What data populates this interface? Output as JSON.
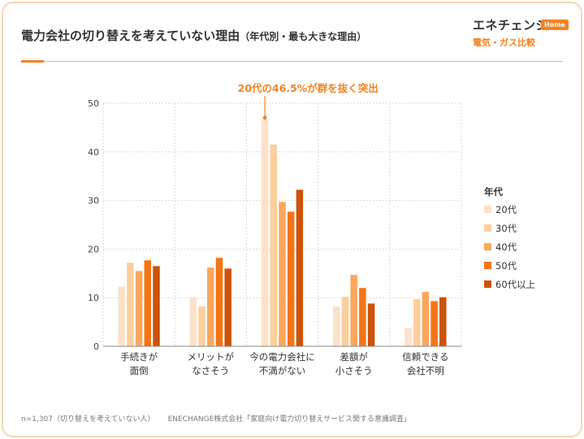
{
  "title": "電力会社の切り替えを考えていない理由",
  "subtitle": "（年代別・最も大きな理由）",
  "brand": {
    "name": "エネチェンジ",
    "badge": "Home",
    "tagline": "電気・ガス比較"
  },
  "footer": {
    "note": "n=1,307（切り替えを考えていない人）",
    "source": "ENECHANGE株式会社「家庭向け電力切り替えサービス関する意識調査」"
  },
  "colors": {
    "accent": "#f5821f",
    "grid": "#d9d9d9",
    "text": "#333333",
    "frame": "#f6d7b3"
  },
  "chart_data": {
    "type": "bar",
    "categories": [
      [
        "手続きが",
        "面倒"
      ],
      [
        "メリットが",
        "なさそう"
      ],
      [
        "今の電力会社に",
        "不満がない"
      ],
      [
        "差額が",
        "小さそう"
      ],
      [
        "信頼できる",
        "会社不明"
      ]
    ],
    "series": [
      {
        "name": "20代",
        "color": "#fde1c8",
        "values": [
          12.3,
          10.0,
          46.5,
          8.2,
          3.8
        ]
      },
      {
        "name": "30代",
        "color": "#fdcf9c",
        "values": [
          17.2,
          8.2,
          41.5,
          10.2,
          9.7
        ]
      },
      {
        "name": "40代",
        "color": "#fba75c",
        "values": [
          15.5,
          16.2,
          29.7,
          14.7,
          11.2
        ]
      },
      {
        "name": "50代",
        "color": "#f67415",
        "values": [
          17.7,
          18.2,
          27.7,
          12.0,
          9.3
        ]
      },
      {
        "name": "60代以上",
        "color": "#cc5308",
        "values": [
          16.5,
          16.0,
          32.2,
          8.8,
          10.1
        ]
      }
    ],
    "ylim": [
      0,
      50
    ],
    "yticks": [
      0,
      10,
      20,
      30,
      40,
      50
    ],
    "grid": true,
    "legend": {
      "title": "年代",
      "position": "right"
    },
    "annotation": {
      "text": "20代の46.5%が群を抜く突出",
      "category_index": 2,
      "series_index": 0
    }
  }
}
